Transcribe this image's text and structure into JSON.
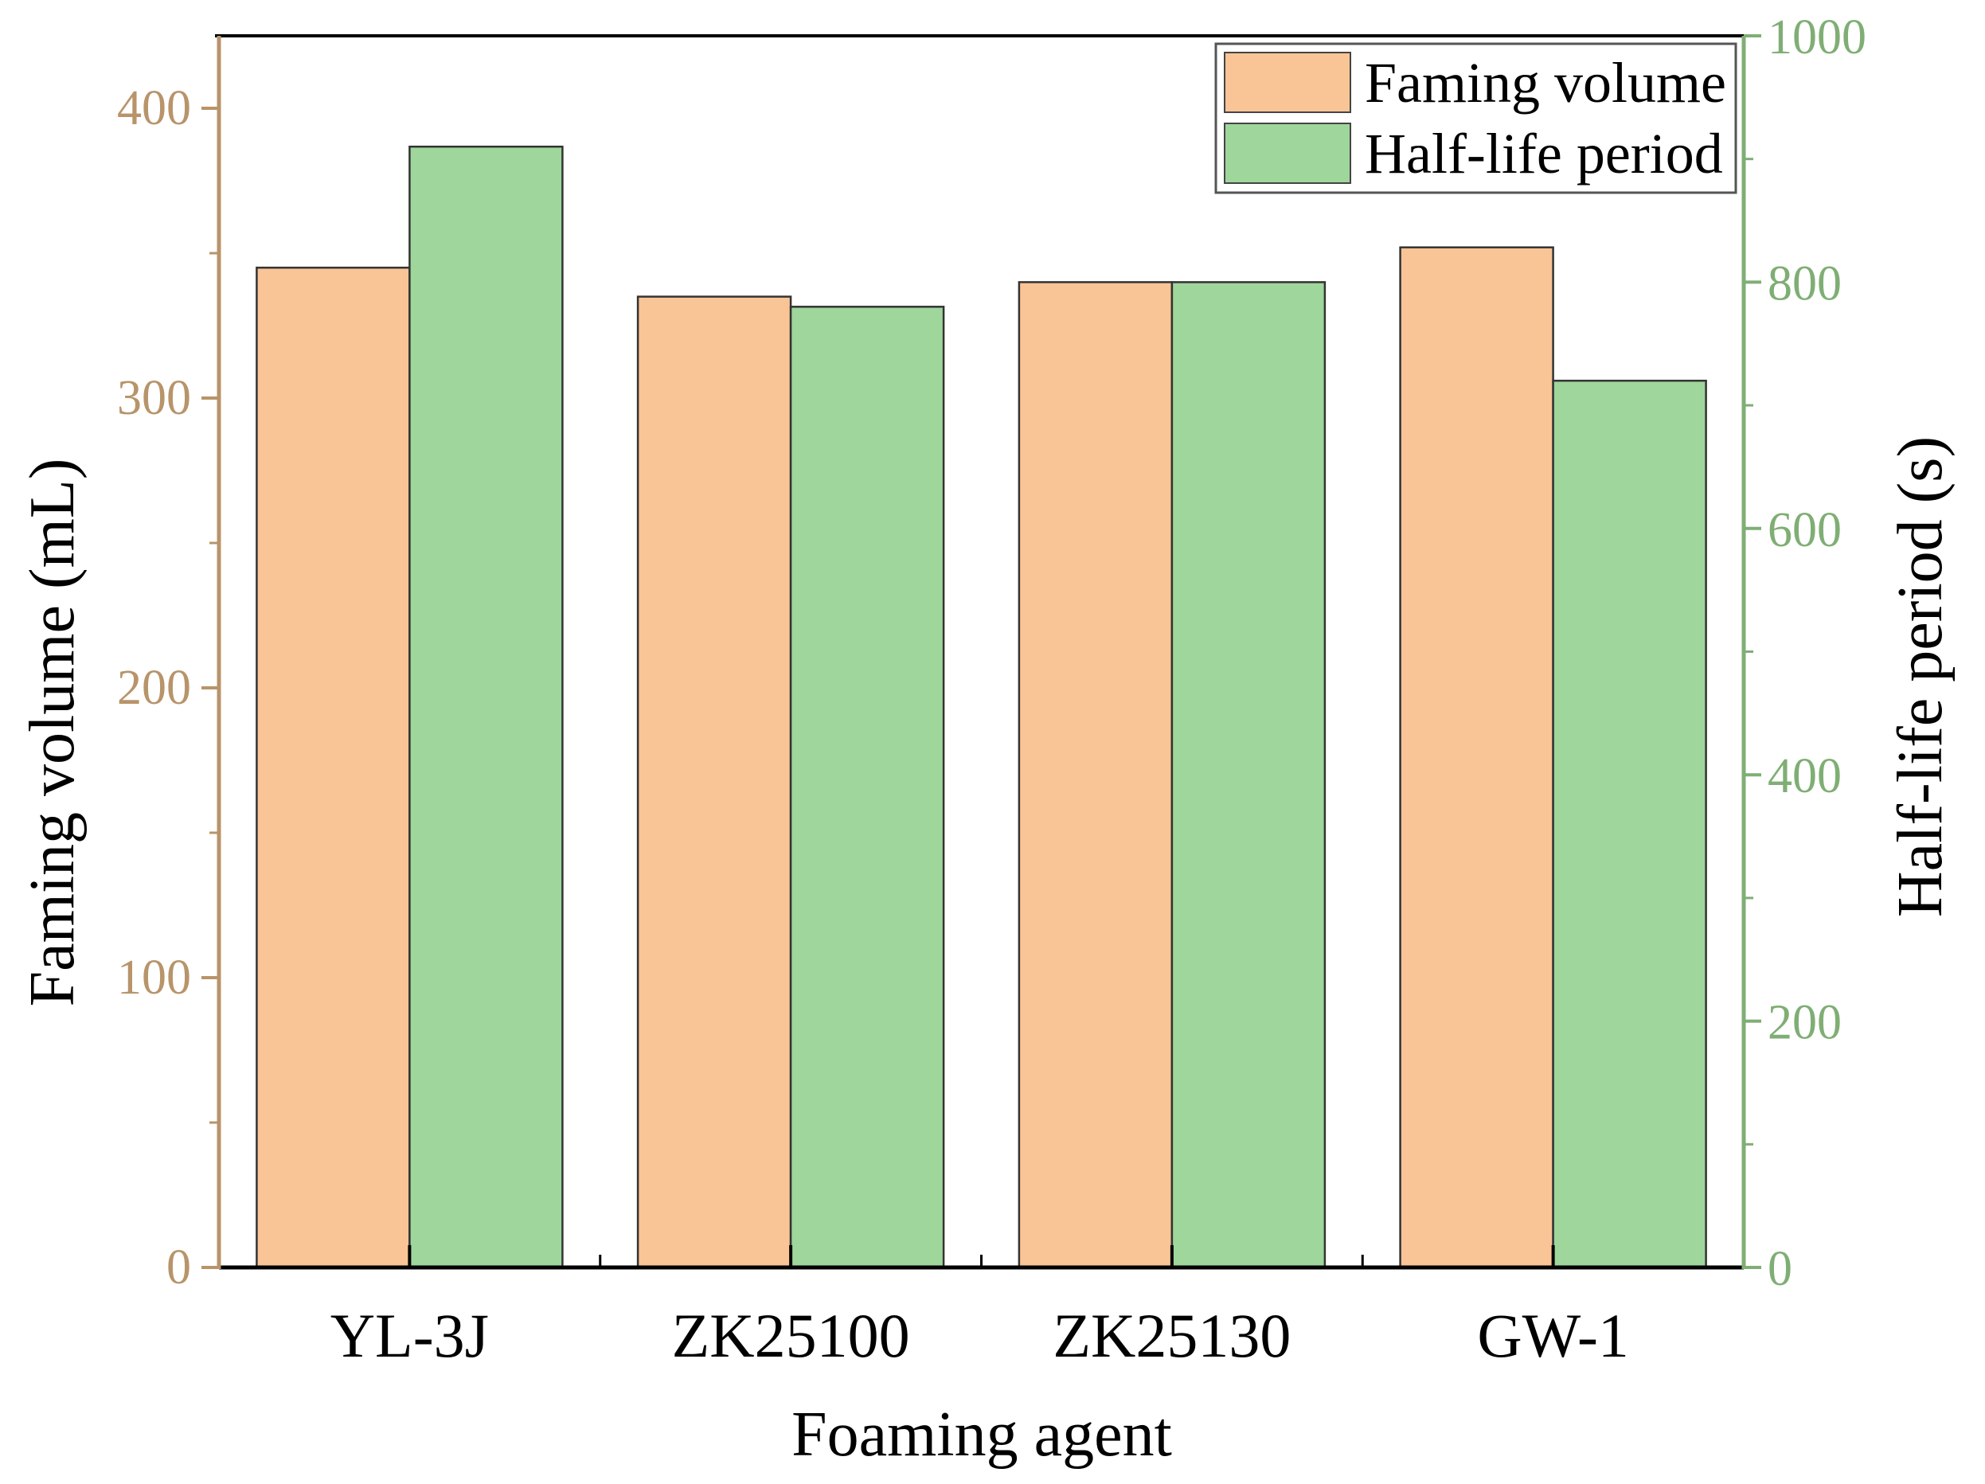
{
  "chart_data": {
    "type": "bar",
    "title": "",
    "xlabel": "Foaming agent",
    "categories": [
      "YL-3J",
      "ZK25100",
      "ZK25130",
      "GW-1"
    ],
    "series": [
      {
        "name": "Faming volume",
        "axis": "left",
        "values": [
          345,
          335,
          340,
          352
        ]
      },
      {
        "name": "Half-life period",
        "axis": "right",
        "values": [
          910,
          780,
          800,
          720
        ]
      }
    ],
    "y_left": {
      "label": "Faming volume (mL)",
      "ylim": [
        0,
        425
      ],
      "ticks": [
        0,
        100,
        200,
        300,
        400
      ]
    },
    "y_right": {
      "label": "Half-life period (s)",
      "ylim": [
        0,
        1000
      ],
      "ticks": [
        0,
        200,
        400,
        600,
        800,
        1000
      ]
    },
    "grid": false,
    "legend": "top-right"
  },
  "colors": {
    "volume_fill": "#f9c496",
    "halflife_fill": "#9ed69b",
    "left_axis": "#b8946a",
    "right_axis": "#7fae74",
    "frame": "#000000"
  }
}
